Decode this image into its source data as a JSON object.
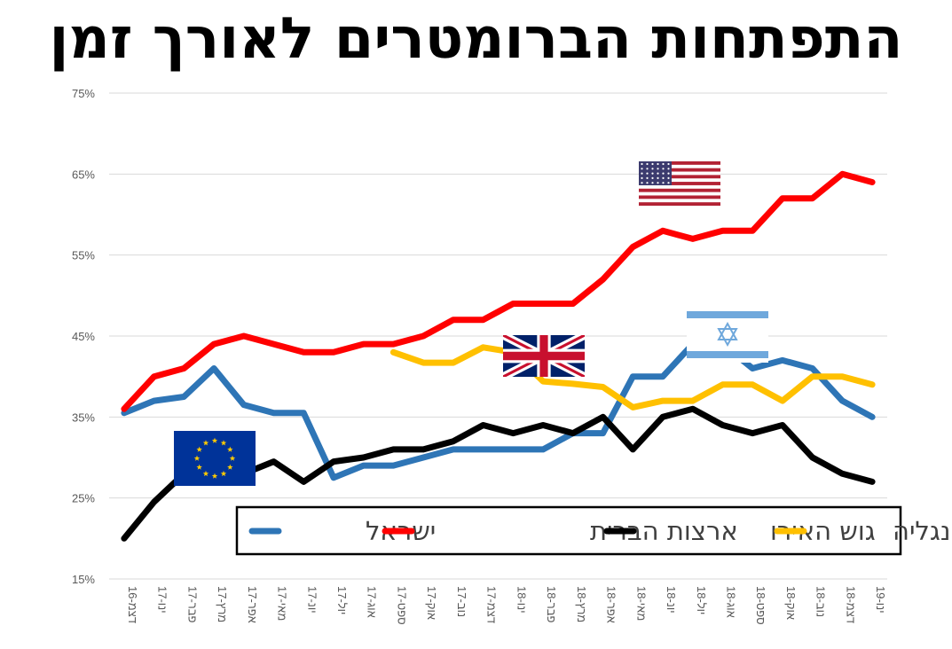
{
  "title": "התפתחות הברומטרים לאורך זמן",
  "chart_data": {
    "type": "line",
    "title": "התפתחות הברומטרים לאורך זמן",
    "x": [
      "דצמ-16",
      "ינו-17",
      "פבר-17",
      "מרץ-17",
      "אפר-17",
      "מאי-17",
      "יונ-17",
      "יול-17",
      "אוג-17",
      "ספט-17",
      "אוק-17",
      "נוב-17",
      "דצמ-17",
      "ינו-18",
      "פבר-18",
      "מרץ-18",
      "אפר-18",
      "מאי-18",
      "יונ-18",
      "יול-18",
      "אוג-18",
      "ספט-18",
      "אוק-18",
      "נוב-18",
      "דצמ-18",
      "ינו-19"
    ],
    "y_ticks": [
      "15%",
      "25%",
      "35%",
      "45%",
      "55%",
      "65%",
      "75%"
    ],
    "ylim": [
      15,
      75
    ],
    "grid": true,
    "legend_position": "bottom-right",
    "series": [
      {
        "name": "ישראל",
        "color": "#2E75B6",
        "values": [
          35.5,
          37,
          37.5,
          41,
          36.5,
          35.5,
          35.5,
          27.5,
          29,
          29,
          30,
          31,
          31,
          31,
          31,
          33,
          33,
          40,
          40,
          44,
          44,
          41,
          42,
          41,
          37,
          35
        ]
      },
      {
        "name": "ארצות הברית",
        "color": "#FF0000",
        "values": [
          36,
          40,
          41,
          44,
          45,
          44,
          43,
          43,
          44,
          44,
          45,
          47,
          47,
          49,
          49,
          49,
          52,
          56,
          58,
          57,
          58,
          58,
          62,
          62,
          65,
          64
        ]
      },
      {
        "name": "גוש האירו",
        "color": "#000000",
        "values": [
          20,
          24.5,
          28,
          null,
          28,
          29.5,
          27,
          29.5,
          30,
          31,
          31,
          32,
          34,
          33,
          34,
          33,
          35,
          31,
          35,
          36,
          34,
          33,
          34,
          30,
          28,
          27
        ]
      },
      {
        "name": "אנגליה",
        "color": "#FFC000",
        "values": [
          null,
          null,
          null,
          null,
          null,
          null,
          null,
          null,
          null,
          43,
          41.7,
          41.7,
          43.6,
          43,
          39.4,
          39.1,
          38.7,
          36.2,
          37,
          37,
          39,
          39,
          37,
          40,
          40,
          39
        ]
      }
    ],
    "flags": [
      "us-flag-icon",
      "uk-flag-icon",
      "israel-flag-icon",
      "eu-flag-icon"
    ]
  }
}
